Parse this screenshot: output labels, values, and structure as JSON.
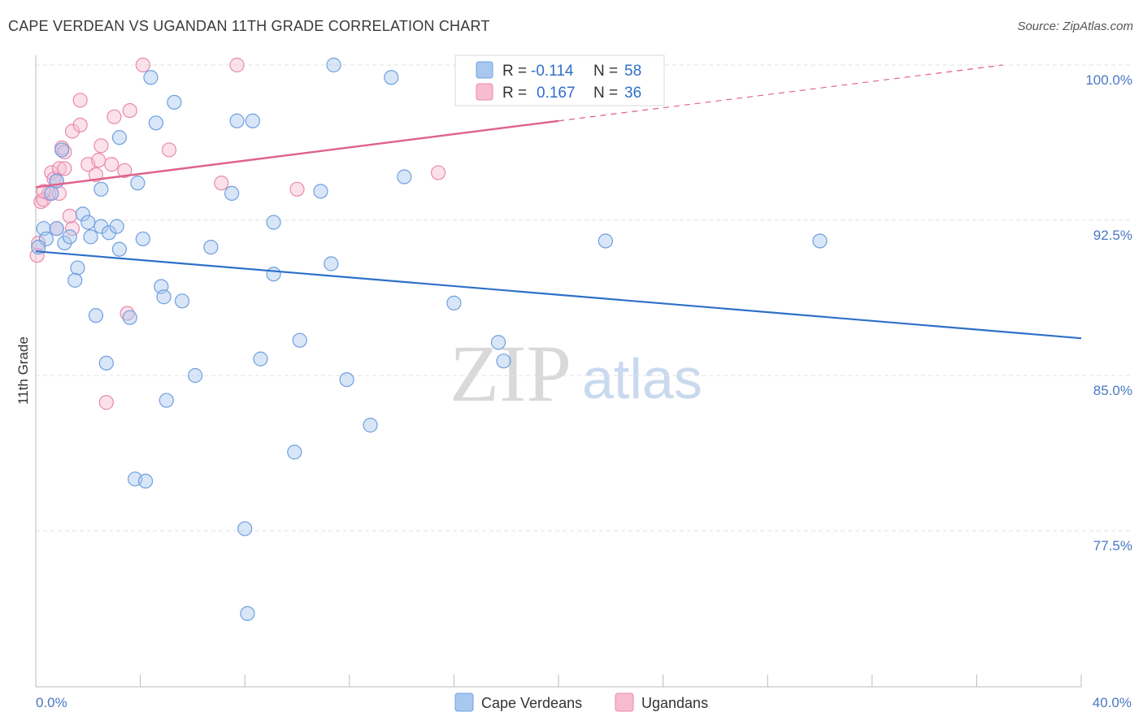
{
  "header": {
    "title": "CAPE VERDEAN VS UGANDAN 11TH GRADE CORRELATION CHART",
    "source": "Source: ZipAtlas.com"
  },
  "watermark": {
    "part1": "ZIP",
    "part2": "atlas"
  },
  "colors": {
    "blue_fill": "#a9c8f0",
    "blue_stroke": "#6f9fe0",
    "blue_line": "#2f6fc9",
    "pink_fill": "#f7bcd0",
    "pink_stroke": "#e98aab",
    "pink_line": "#e0608a",
    "grid": "#e2e2e2",
    "tick_text": "#4a78c2"
  },
  "legend": {
    "rows": [
      {
        "r_label": "R =",
        "r_value": "-0.114",
        "n_label": "N =",
        "n_value": "58"
      },
      {
        "r_label": "R =",
        "r_value": "0.167",
        "n_label": "N =",
        "n_value": "36"
      }
    ]
  },
  "chart_data": {
    "type": "scatter",
    "title": "CAPE VERDEAN VS UGANDAN 11TH GRADE CORRELATION CHART",
    "xlabel": "",
    "ylabel": "11th Grade",
    "xlim": [
      0,
      40
    ],
    "ylim": [
      71.0,
      100.7
    ],
    "x_tick_labels": [
      "0.0%",
      "40.0%"
    ],
    "y_ticks": [
      {
        "value": 100.0,
        "label": "100.0%"
      },
      {
        "value": 92.5,
        "label": "92.5%"
      },
      {
        "value": 85.0,
        "label": "85.0%"
      },
      {
        "value": 77.5,
        "label": "77.5%"
      }
    ],
    "grid": true,
    "legend_position": "top-center",
    "series": [
      {
        "name": "Cape Verdeans",
        "r": -0.114,
        "n": 58,
        "trend": {
          "x0": 0,
          "y0": 91.0,
          "x1": 40,
          "y1": 86.8,
          "dashed_from": null
        },
        "points": [
          [
            0.3,
            92.1
          ],
          [
            0.4,
            91.6
          ],
          [
            0.6,
            93.8
          ],
          [
            0.8,
            94.4
          ],
          [
            0.8,
            92.1
          ],
          [
            1.0,
            95.9
          ],
          [
            1.1,
            91.4
          ],
          [
            1.3,
            91.7
          ],
          [
            1.6,
            90.2
          ],
          [
            1.5,
            89.6
          ],
          [
            1.8,
            92.8
          ],
          [
            2.0,
            92.4
          ],
          [
            2.1,
            91.7
          ],
          [
            2.3,
            87.9
          ],
          [
            2.5,
            92.2
          ],
          [
            2.5,
            94.0
          ],
          [
            2.7,
            85.6
          ],
          [
            2.8,
            91.9
          ],
          [
            3.1,
            92.2
          ],
          [
            3.2,
            96.5
          ],
          [
            3.2,
            91.1
          ],
          [
            3.6,
            87.8
          ],
          [
            3.9,
            94.3
          ],
          [
            4.1,
            91.6
          ],
          [
            3.8,
            80.0
          ],
          [
            4.2,
            79.9
          ],
          [
            4.4,
            99.4
          ],
          [
            4.6,
            97.2
          ],
          [
            4.8,
            89.3
          ],
          [
            4.9,
            88.8
          ],
          [
            5.0,
            83.8
          ],
          [
            5.3,
            98.2
          ],
          [
            5.6,
            88.6
          ],
          [
            6.1,
            85.0
          ],
          [
            6.7,
            91.2
          ],
          [
            7.5,
            93.8
          ],
          [
            7.7,
            97.3
          ],
          [
            8.0,
            77.6
          ],
          [
            8.1,
            73.5
          ],
          [
            8.3,
            97.3
          ],
          [
            8.6,
            85.8
          ],
          [
            9.1,
            92.4
          ],
          [
            9.1,
            89.9
          ],
          [
            9.9,
            81.3
          ],
          [
            10.1,
            86.7
          ],
          [
            10.9,
            93.9
          ],
          [
            11.3,
            90.4
          ],
          [
            11.4,
            100.0
          ],
          [
            11.9,
            84.8
          ],
          [
            12.8,
            82.6
          ],
          [
            13.6,
            99.4
          ],
          [
            14.1,
            94.6
          ],
          [
            16.0,
            88.5
          ],
          [
            17.7,
            86.6
          ],
          [
            17.9,
            85.7
          ],
          [
            21.8,
            91.5
          ],
          [
            30.0,
            91.5
          ],
          [
            0.1,
            91.2
          ]
        ]
      },
      {
        "name": "Ugandans",
        "r": 0.167,
        "n": 36,
        "trend": {
          "x0": 0,
          "y0": 94.1,
          "x1": 20,
          "y1": 97.3,
          "dashed_to_x": 37,
          "dashed_to_y": 100.0
        },
        "points": [
          [
            0.1,
            91.4
          ],
          [
            0.2,
            93.4
          ],
          [
            0.3,
            93.5
          ],
          [
            0.5,
            93.8
          ],
          [
            0.6,
            94.8
          ],
          [
            0.7,
            94.5
          ],
          [
            0.8,
            94.4
          ],
          [
            0.8,
            92.1
          ],
          [
            0.9,
            95.0
          ],
          [
            1.0,
            96.0
          ],
          [
            1.1,
            95.8
          ],
          [
            1.1,
            95.0
          ],
          [
            1.3,
            92.7
          ],
          [
            1.4,
            92.1
          ],
          [
            1.4,
            96.8
          ],
          [
            1.7,
            97.1
          ],
          [
            1.7,
            98.3
          ],
          [
            2.0,
            95.2
          ],
          [
            2.3,
            94.7
          ],
          [
            2.4,
            95.4
          ],
          [
            2.5,
            96.1
          ],
          [
            2.7,
            83.7
          ],
          [
            2.9,
            95.2
          ],
          [
            3.0,
            97.5
          ],
          [
            3.4,
            94.9
          ],
          [
            3.5,
            88.0
          ],
          [
            3.6,
            97.8
          ],
          [
            4.1,
            100.0
          ],
          [
            5.1,
            95.9
          ],
          [
            7.1,
            94.3
          ],
          [
            7.7,
            100.0
          ],
          [
            10.0,
            94.0
          ],
          [
            15.4,
            94.8
          ],
          [
            0.3,
            93.9
          ],
          [
            0.9,
            93.8
          ],
          [
            0.05,
            90.8
          ]
        ]
      }
    ]
  },
  "bottom_legend": {
    "items": [
      "Cape Verdeans",
      "Ugandans"
    ]
  }
}
